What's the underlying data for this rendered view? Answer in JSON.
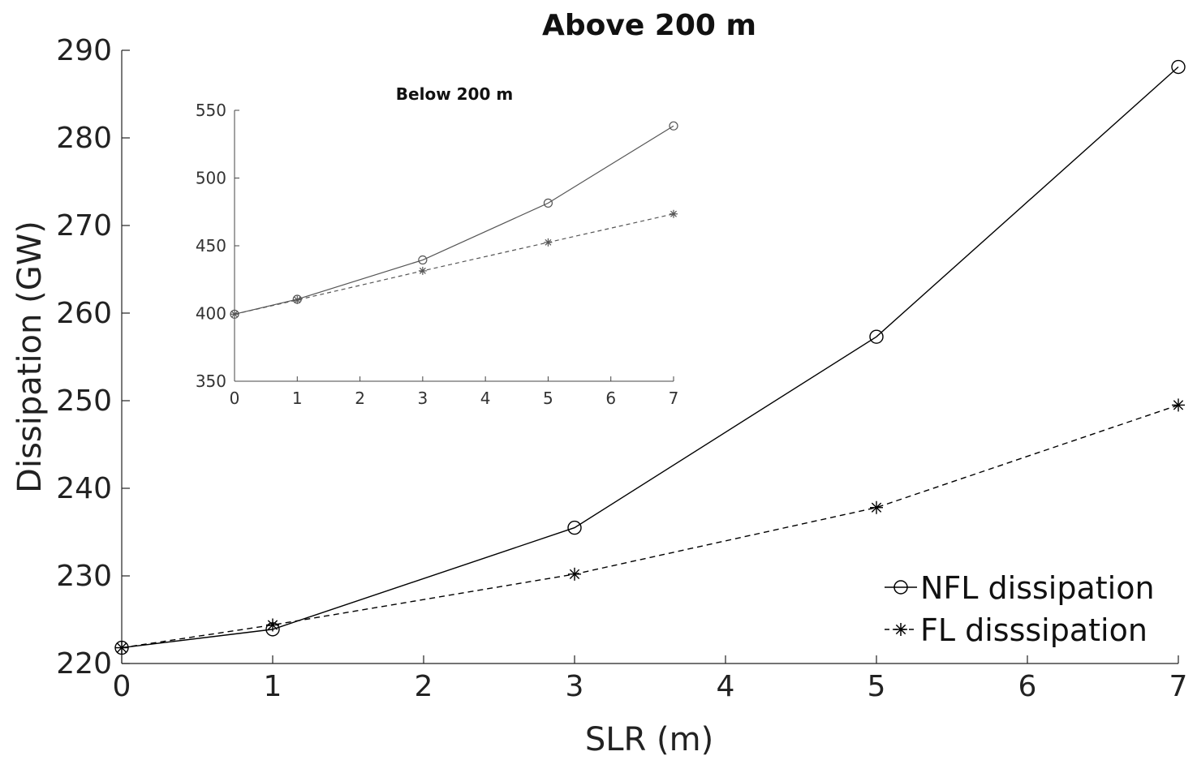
{
  "chart_data": [
    {
      "type": "line",
      "title": "Above 200 m",
      "xlabel": "SLR (m)",
      "ylabel": "Dissipation (GW)",
      "x": [
        0,
        1,
        3,
        5,
        7
      ],
      "xlim": [
        0,
        7
      ],
      "ylim": [
        220,
        290
      ],
      "xticks": [
        0,
        1,
        2,
        3,
        4,
        5,
        6,
        7
      ],
      "yticks": [
        220,
        230,
        240,
        250,
        260,
        270,
        280,
        290
      ],
      "grid": false,
      "legend_position": "bottom-right",
      "series": [
        {
          "name": "NFL dissipation",
          "marker": "circle",
          "linestyle": "solid",
          "color": "#000000",
          "values": [
            221.8,
            223.9,
            235.5,
            257.3,
            288.1
          ]
        },
        {
          "name": "FL disssipation",
          "marker": "asterisk",
          "linestyle": "dashed",
          "color": "#000000",
          "values": [
            221.8,
            224.4,
            230.2,
            237.8,
            249.5
          ]
        }
      ]
    },
    {
      "type": "line",
      "title": "Below 200 m",
      "xlabel": "",
      "ylabel": "",
      "x": [
        0,
        1,
        3,
        5,
        7
      ],
      "xlim": [
        0,
        7
      ],
      "ylim": [
        350,
        550
      ],
      "xticks": [
        0,
        1,
        2,
        3,
        4,
        5,
        6,
        7
      ],
      "yticks": [
        350,
        400,
        450,
        500,
        550
      ],
      "grid": false,
      "series": [
        {
          "marker": "circle",
          "linestyle": "solid",
          "color": "#555555",
          "values": [
            399.5,
            410.5,
            439.5,
            481.5,
            538.5
          ]
        },
        {
          "marker": "asterisk",
          "linestyle": "dashed",
          "color": "#555555",
          "values": [
            399.5,
            410.0,
            431.5,
            452.5,
            473.5
          ]
        }
      ]
    }
  ]
}
